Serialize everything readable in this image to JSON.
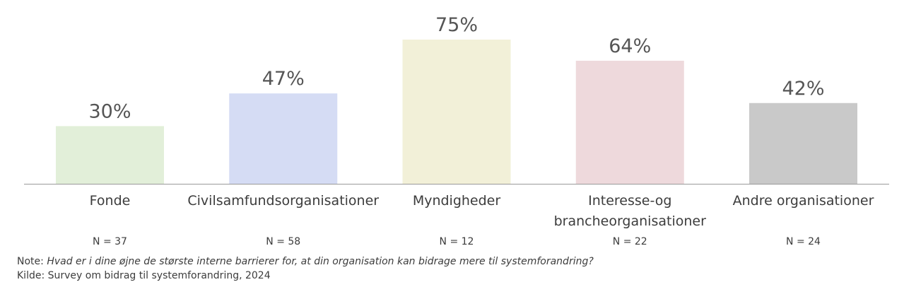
{
  "chart_data": {
    "type": "bar",
    "categories": [
      "Fonde",
      "Civilsamfundsorganisationer",
      "Myndigheder",
      "Interesse-og brancheorganisationer",
      "Andre organisationer"
    ],
    "category_lines": [
      [
        "Fonde"
      ],
      [
        "Civilsamfundsorganisationer"
      ],
      [
        "Myndigheder"
      ],
      [
        "Interesse-og",
        "brancheorganisationer"
      ],
      [
        "Andre organisationer"
      ]
    ],
    "values": [
      30,
      47,
      75,
      64,
      42
    ],
    "value_labels": [
      "30%",
      "47%",
      "75%",
      "64%",
      "42%"
    ],
    "n_labels": [
      "N = 37",
      "N = 58",
      "N = 12",
      "N = 22",
      "N = 24"
    ],
    "colors": [
      "#e2efd9",
      "#d5dcf4",
      "#f2f0d8",
      "#eed9dc",
      "#c9c9c9"
    ],
    "ylim": [
      0,
      100
    ],
    "grid": false,
    "title": "",
    "xlabel": "",
    "ylabel": ""
  },
  "footnotes": {
    "note_prefix": "Note: ",
    "note_text": "Hvad er i dine øjne de største interne barrierer for, at din organisation kan bidrage mere til systemforandring?",
    "source": "Kilde: Survey om bidrag til systemforandring, 2024"
  }
}
